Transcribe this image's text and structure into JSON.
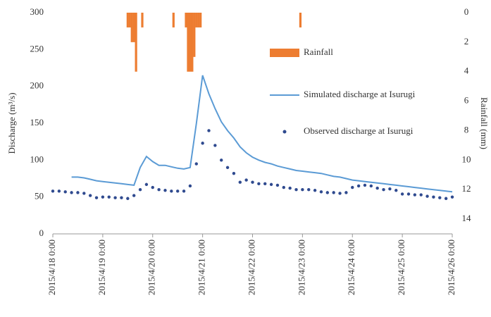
{
  "chart_data": {
    "type": "line",
    "y_label": "Discharge (m³/s)",
    "y2_label": "Rainfall  (mm)",
    "xlim": [
      "2015/4/18 0:00",
      "2015/4/26 0:00"
    ],
    "xticks": [
      "2015/4/18 0:00",
      "2015/4/19 0:00",
      "2015/4/20 0:00",
      "2015/4/21 0:00",
      "2015/4/22 0:00",
      "2015/4/23 0:00",
      "2015/4/24 0:00",
      "2015/4/25 0:00",
      "2015/4/26 0:00"
    ],
    "ylim": [
      0,
      300
    ],
    "yticks": [
      0,
      50,
      100,
      150,
      200,
      250,
      300
    ],
    "y2lim": [
      0,
      15
    ],
    "y2ticks": [
      0,
      2,
      4,
      6,
      8,
      10,
      12,
      14
    ],
    "y2_inverted": true,
    "x": [
      "2015/4/18 0:00",
      "2015/4/18 3:00",
      "2015/4/18 6:00",
      "2015/4/18 9:00",
      "2015/4/18 12:00",
      "2015/4/18 15:00",
      "2015/4/18 18:00",
      "2015/4/18 21:00",
      "2015/4/19 0:00",
      "2015/4/19 3:00",
      "2015/4/19 6:00",
      "2015/4/19 9:00",
      "2015/4/19 12:00",
      "2015/4/19 15:00",
      "2015/4/19 18:00",
      "2015/4/19 21:00",
      "2015/4/20 0:00",
      "2015/4/20 3:00",
      "2015/4/20 6:00",
      "2015/4/20 9:00",
      "2015/4/20 12:00",
      "2015/4/20 15:00",
      "2015/4/20 18:00",
      "2015/4/20 21:00",
      "2015/4/21 0:00",
      "2015/4/21 3:00",
      "2015/4/21 6:00",
      "2015/4/21 9:00",
      "2015/4/21 12:00",
      "2015/4/21 15:00",
      "2015/4/21 18:00",
      "2015/4/21 21:00",
      "2015/4/22 0:00",
      "2015/4/22 3:00",
      "2015/4/22 6:00",
      "2015/4/22 9:00",
      "2015/4/22 12:00",
      "2015/4/22 15:00",
      "2015/4/22 18:00",
      "2015/4/22 21:00",
      "2015/4/23 0:00",
      "2015/4/23 3:00",
      "2015/4/23 6:00",
      "2015/4/23 9:00",
      "2015/4/23 12:00",
      "2015/4/23 15:00",
      "2015/4/23 18:00",
      "2015/4/23 21:00",
      "2015/4/24 0:00",
      "2015/4/24 3:00",
      "2015/4/24 6:00",
      "2015/4/24 9:00",
      "2015/4/24 12:00",
      "2015/4/24 15:00",
      "2015/4/24 18:00",
      "2015/4/24 21:00",
      "2015/4/25 0:00",
      "2015/4/25 3:00",
      "2015/4/25 6:00",
      "2015/4/25 9:00",
      "2015/4/25 12:00",
      "2015/4/25 15:00",
      "2015/4/25 18:00",
      "2015/4/25 21:00",
      "2015/4/26 0:00"
    ],
    "series": [
      {
        "name": "Rainfall",
        "kind": "bar",
        "axis": "y2",
        "color": "#ed7d31",
        "x": [
          "2015/4/19 12:00",
          "2015/4/19 13:00",
          "2015/4/19 14:00",
          "2015/4/19 15:00",
          "2015/4/19 16:00",
          "2015/4/19 19:00",
          "2015/4/20 10:00",
          "2015/4/20 16:00",
          "2015/4/20 17:00",
          "2015/4/20 18:00",
          "2015/4/20 19:00",
          "2015/4/20 20:00",
          "2015/4/20 21:00",
          "2015/4/20 22:00",
          "2015/4/20 23:00",
          "2015/4/22 23:00"
        ],
        "values": [
          1,
          1,
          2,
          2,
          4,
          1,
          1,
          1,
          4,
          4,
          4,
          3,
          1,
          1,
          1,
          1
        ]
      },
      {
        "name": "Simulated discharge at Isurugi",
        "kind": "line",
        "color": "#5b9bd5",
        "values": [
          null,
          null,
          null,
          77,
          77,
          76,
          74,
          72,
          71,
          70,
          69,
          68,
          67,
          66,
          90,
          105,
          98,
          93,
          93,
          91,
          89,
          88,
          90,
          150,
          215,
          190,
          170,
          152,
          140,
          130,
          118,
          110,
          104,
          100,
          97,
          95,
          92,
          90,
          88,
          86,
          85,
          84,
          83,
          82,
          80,
          78,
          77,
          75,
          73,
          72,
          71,
          70,
          69,
          68,
          67,
          66,
          65,
          64,
          63,
          62,
          61,
          60,
          59,
          58,
          57
        ]
      },
      {
        "name": "Observed discharge at Isurugi",
        "kind": "dots",
        "color": "#2f4a8f",
        "values": [
          58,
          58,
          57,
          56,
          56,
          55,
          52,
          49,
          50,
          50,
          49,
          49,
          48,
          52,
          60,
          67,
          63,
          60,
          59,
          58,
          58,
          58,
          65,
          95,
          123,
          140,
          120,
          100,
          90,
          82,
          70,
          73,
          70,
          68,
          68,
          67,
          66,
          63,
          62,
          60,
          60,
          60,
          59,
          57,
          56,
          56,
          55,
          56,
          63,
          65,
          66,
          65,
          62,
          60,
          61,
          59,
          54,
          54,
          53,
          53,
          51,
          50,
          49,
          48,
          50
        ]
      }
    ]
  }
}
